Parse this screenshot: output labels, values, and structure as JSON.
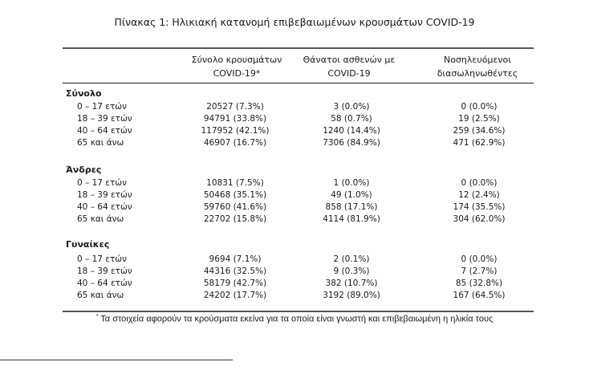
{
  "title": "Πίνακας 1: Ηλικιακή κατανομή επιβεβαιωμένων κρουσμάτων COVID-19",
  "columns": [
    {
      "line1": "Σύνολο κρουσμάτων",
      "line2": "COVID-19*"
    },
    {
      "line1": "Θάνατοι ασθενών με",
      "line2": "COVID-19"
    },
    {
      "line1": "Νοσηλευόμενοι",
      "line2": "διασωληνωθέντες"
    }
  ],
  "groups": [
    {
      "label": "Σύνολο",
      "rows": [
        [
          "0 – 17 ετών",
          "20527 (7.3%)",
          "3 (0.0%)",
          "0 (0.0%)"
        ],
        [
          "18 – 39 ετών",
          "94791 (33.8%)",
          "58 (0.7%)",
          "19 (2.5%)"
        ],
        [
          "40 – 64 ετών",
          "117952 (42.1%)",
          "1240 (14.4%)",
          "259 (34.6%)"
        ],
        [
          "65 και άνω",
          "46907 (16.7%)",
          "7306 (84.9%)",
          "471 (62.9%)"
        ]
      ]
    },
    {
      "label": "Άνδρες",
      "rows": [
        [
          "0 – 17 ετών",
          "10831 (7.5%)",
          "1 (0.0%)",
          "0 (0.0%)"
        ],
        [
          "18 – 39 ετών",
          "50468 (35.1%)",
          "49 (1.0%)",
          "12 (2.4%)"
        ],
        [
          "40 – 64 ετών",
          "59760 (41.6%)",
          "858 (17.1%)",
          "174 (35.5%)"
        ],
        [
          "65 και άνω",
          "22702 (15.8%)",
          "4114 (81.9%)",
          "304 (62.0%)"
        ]
      ]
    },
    {
      "label": "Γυναίκες",
      "rows": [
        [
          "0 – 17 ετών",
          "9694 (7.1%)",
          "2 (0.1%)",
          "0 (0.0%)"
        ],
        [
          "18 – 39 ετών",
          "44316 (32.5%)",
          "9 (0.3%)",
          "7 (2.7%)"
        ],
        [
          "40 – 64 ετών",
          "58179 (42.7%)",
          "382 (10.7%)",
          "85 (32.8%)"
        ],
        [
          "65 και άνω",
          "24202 (17.7%)",
          "3192 (89.0%)",
          "167 (64.5%)"
        ]
      ]
    }
  ],
  "footnote": {
    "mark": "*",
    "text": "Τα στοιχεία αφορούν τα κρούσματα εκείνα για τα οποία είναι γνωστή και επιβεβαιωμένη η ηλικία τους"
  }
}
